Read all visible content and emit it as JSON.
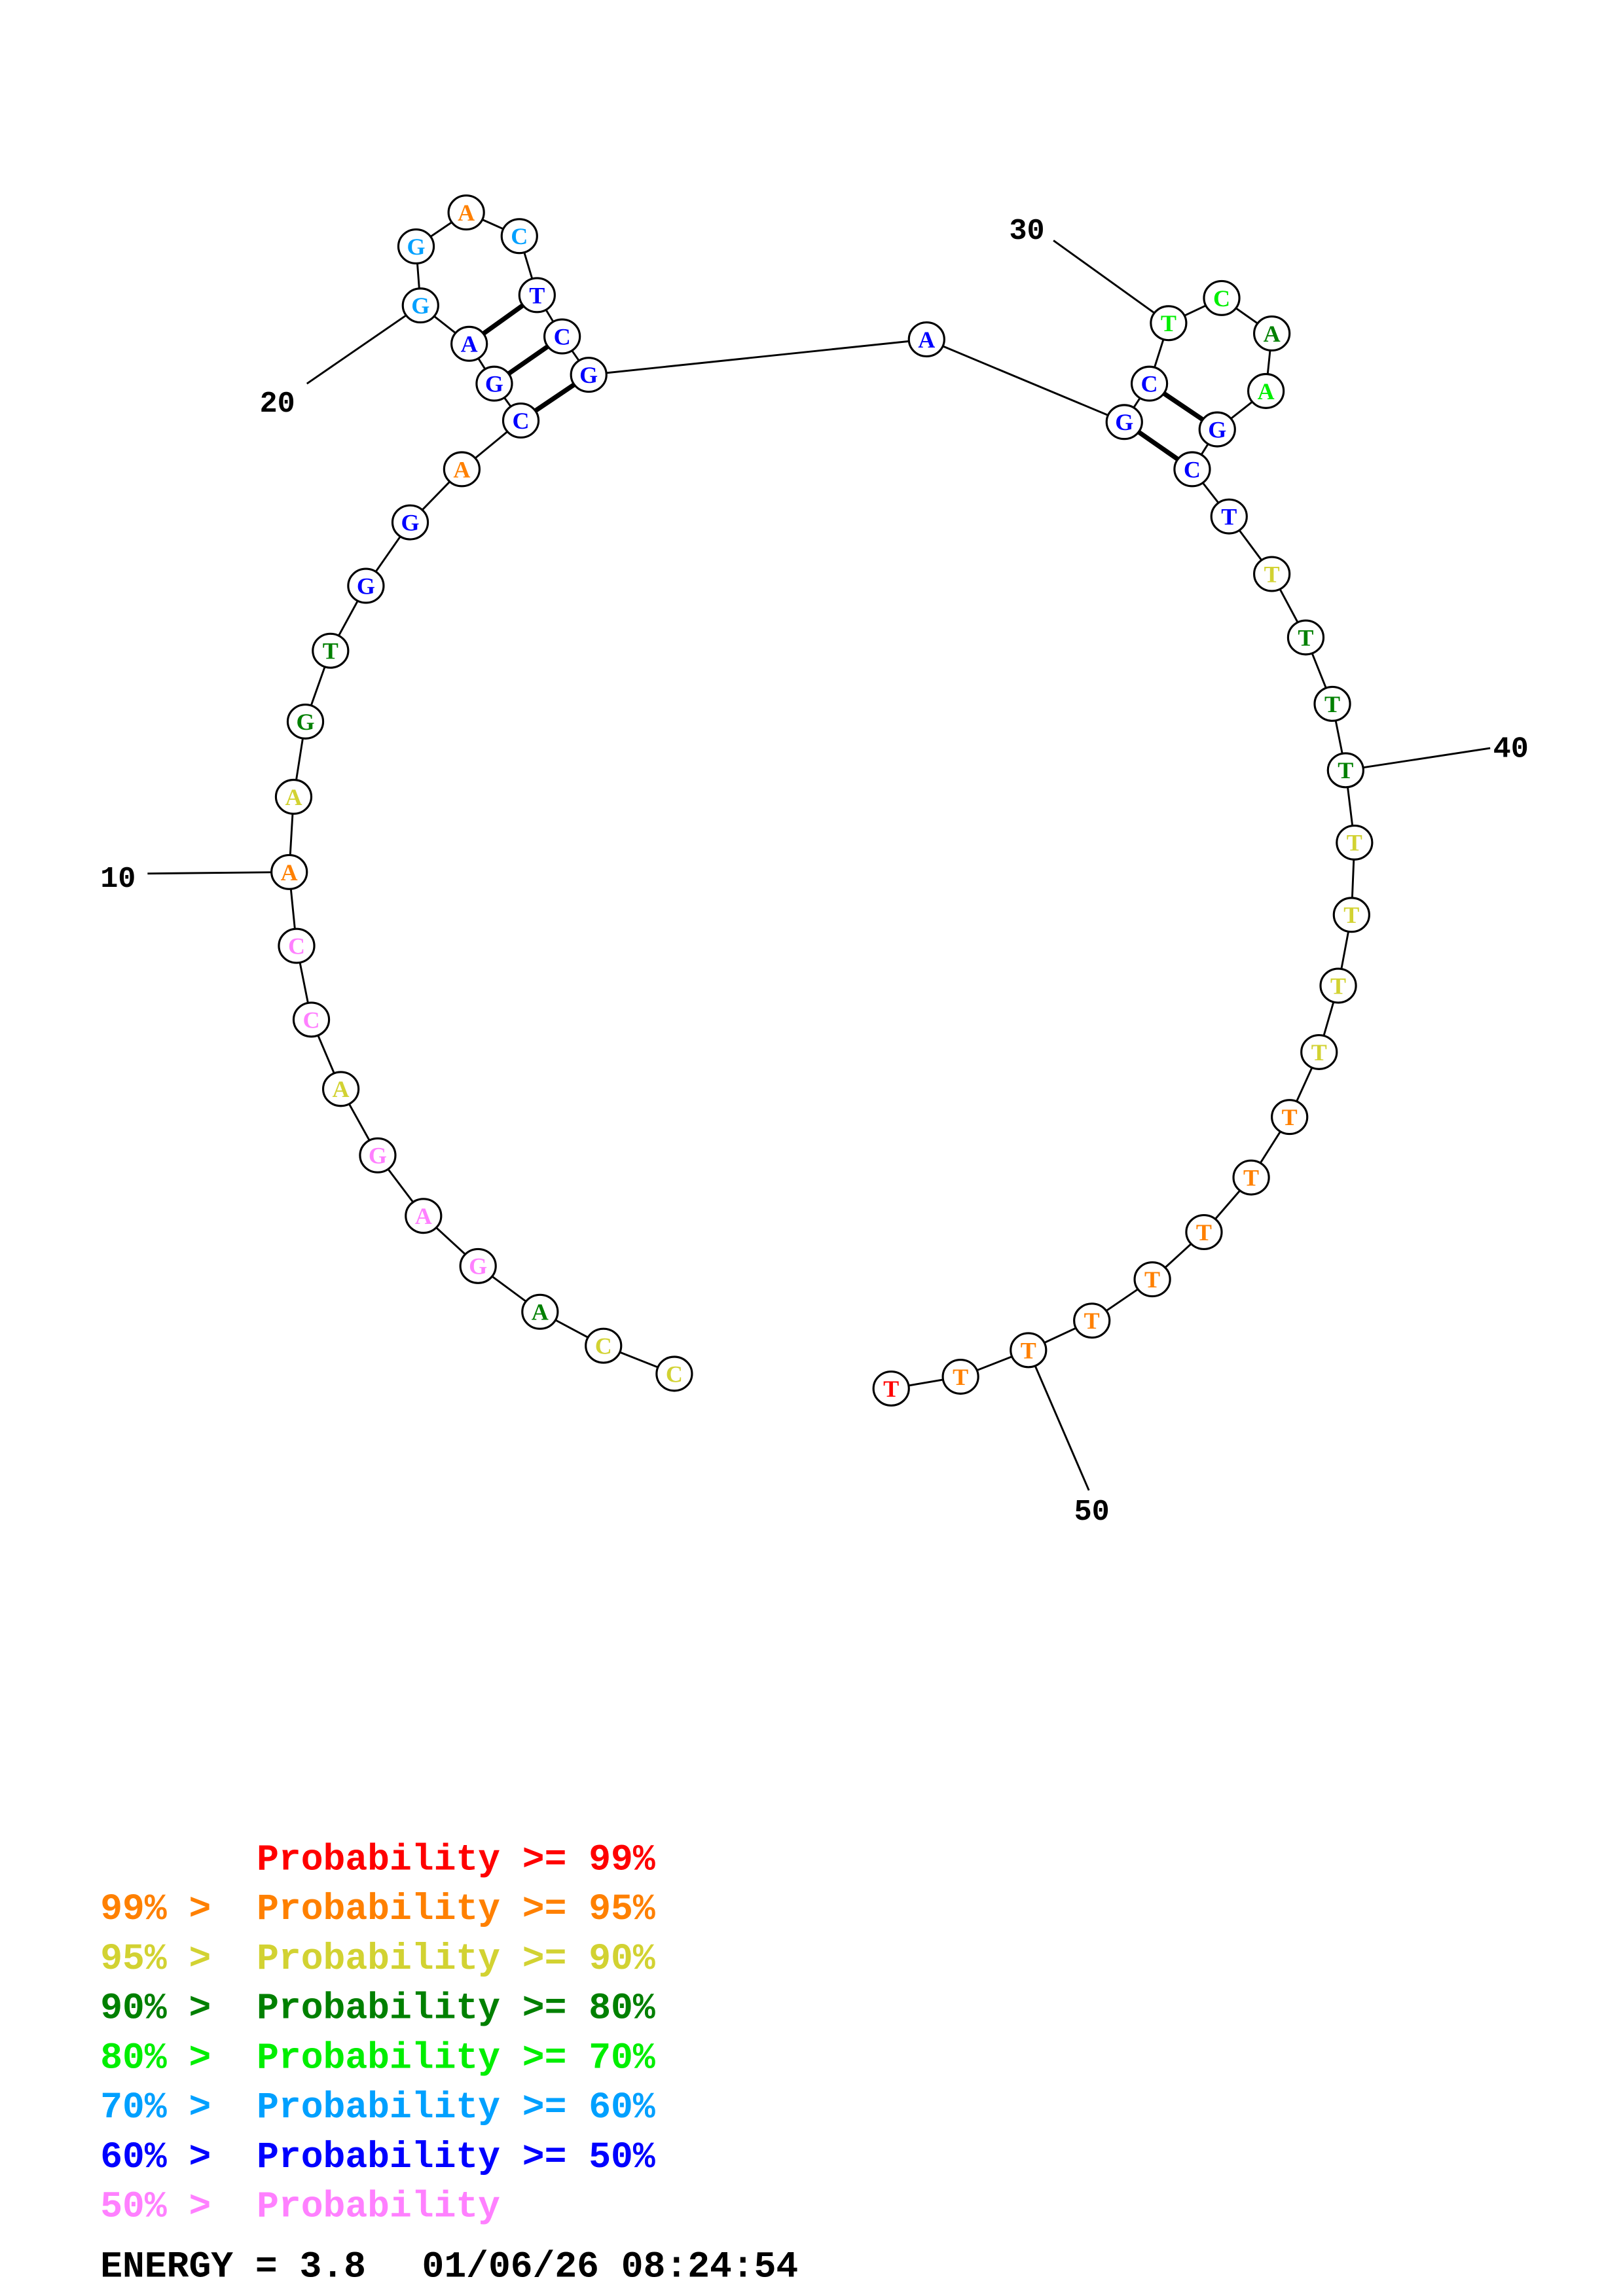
{
  "diagram": {
    "type": "rna-secondary-structure",
    "sequence": [
      "C",
      "C",
      "A",
      "G",
      "A",
      "G",
      "A",
      "C",
      "C",
      "A",
      "A",
      "G",
      "T",
      "G",
      "G",
      "A",
      "C",
      "G",
      "A",
      "G",
      "G",
      "A",
      "C",
      "T",
      "C",
      "G",
      "A",
      "G",
      "C",
      "T",
      "C",
      "A",
      "A",
      "G",
      "C",
      "T",
      "T",
      "T",
      "T",
      "T",
      "T",
      "T",
      "T",
      "T",
      "T",
      "T",
      "T",
      "T",
      "T",
      "T",
      "T",
      "T"
    ],
    "probability_class": [
      2,
      2,
      3,
      7,
      7,
      7,
      2,
      7,
      7,
      1,
      2,
      3,
      3,
      6,
      6,
      1,
      6,
      6,
      6,
      5,
      5,
      1,
      5,
      6,
      6,
      6,
      6,
      6,
      6,
      4,
      4,
      3,
      4,
      6,
      6,
      6,
      2,
      3,
      3,
      3,
      2,
      2,
      2,
      2,
      1,
      1,
      1,
      1,
      1,
      1,
      1,
      0
    ],
    "base_pairs": [
      [
        17,
        26
      ],
      [
        18,
        25
      ],
      [
        19,
        24
      ],
      [
        28,
        35
      ],
      [
        29,
        34
      ]
    ],
    "position_labels": [
      "10",
      "20",
      "30",
      "40",
      "50"
    ]
  },
  "legend": {
    "colors": [
      "#ff0000",
      "#ff8000",
      "#d2d232",
      "#008000",
      "#00ee00",
      "#00a0ff",
      "#0000ff",
      "#ff80ff"
    ],
    "rows": [
      {
        "prefix": "",
        "label": "Probability >= 99%"
      },
      {
        "prefix": "99% >",
        "label": "Probability >= 95%"
      },
      {
        "prefix": "95% >",
        "label": "Probability >= 90%"
      },
      {
        "prefix": "90% >",
        "label": "Probability >= 80%"
      },
      {
        "prefix": "80% >",
        "label": "Probability >= 70%"
      },
      {
        "prefix": "70% >",
        "label": "Probability >= 60%"
      },
      {
        "prefix": "60% >",
        "label": "Probability >= 50%"
      },
      {
        "prefix": "50% >",
        "label": "Probability"
      }
    ]
  },
  "footer": {
    "energy": "ENERGY = 3.8",
    "timestamp": "01/06/26 08:24:54"
  }
}
